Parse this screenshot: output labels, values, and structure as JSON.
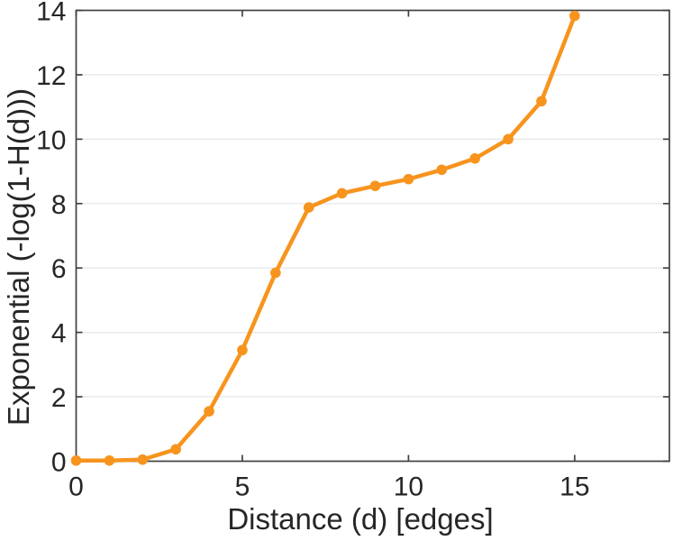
{
  "figure": {
    "background": "#ffffff",
    "axis_color": "#424242",
    "grid_color": "#e8e8e8",
    "text_color": "#262626"
  },
  "chart_data": {
    "type": "line",
    "title": "",
    "xlabel": "Distance (d) [edges]",
    "ylabel": "Exponential (-log(1-H(d)))",
    "x": [
      0,
      1,
      2,
      3,
      4,
      5,
      6,
      7,
      8,
      9,
      10,
      11,
      12,
      13,
      14,
      15
    ],
    "y": [
      0.02,
      0.02,
      0.05,
      0.37,
      1.55,
      3.45,
      5.85,
      7.88,
      8.32,
      8.55,
      8.76,
      9.05,
      9.4,
      10.0,
      11.18,
      13.83
    ],
    "xticks": [
      0,
      5,
      10,
      15
    ],
    "yticks": [
      0,
      2,
      4,
      6,
      8,
      10,
      12,
      14
    ],
    "xlim": [
      0,
      17.85
    ],
    "ylim": [
      0,
      14
    ],
    "grid": "horizontal-only",
    "legend": "none",
    "line_color": "#F7941E",
    "marker": "filled-circle",
    "marker_radius": 5.8
  }
}
